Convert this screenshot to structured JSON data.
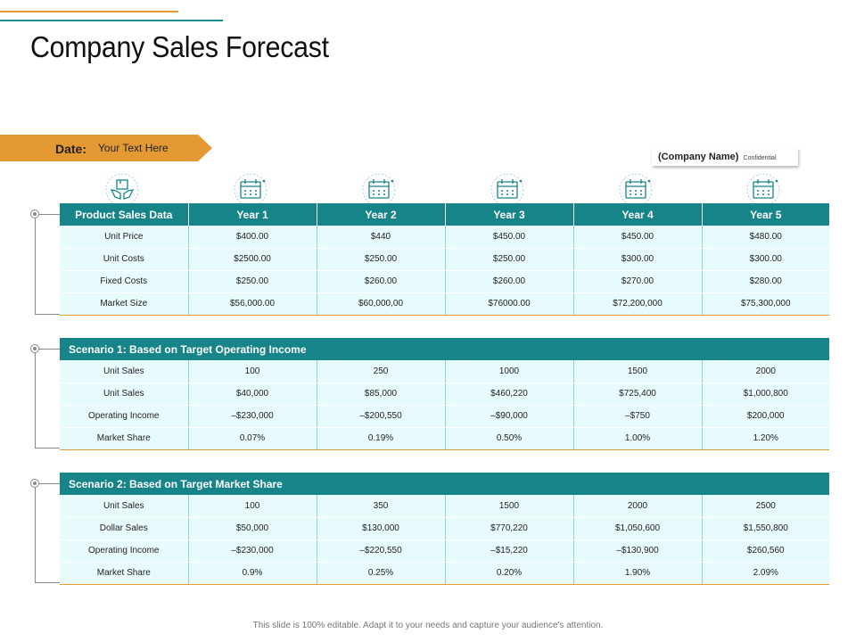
{
  "title": "Company Sales Forecast",
  "date": {
    "label": "Date:",
    "value": "Your Text Here"
  },
  "company": {
    "name": "(Company Name)",
    "note": "Confidential"
  },
  "colors": {
    "teal": "#168488",
    "orange": "#e39a35",
    "row_bg": "#e8fbfc"
  },
  "icons": [
    "hands-box-icon",
    "calendar-icon",
    "calendar-icon",
    "calendar-icon",
    "calendar-icon",
    "calendar-icon"
  ],
  "table1": {
    "header": [
      "Product Sales Data",
      "Year 1",
      "Year 2",
      "Year 3",
      "Year 4",
      "Year 5"
    ],
    "rows": [
      [
        "Unit Price",
        "$400.00",
        "$440",
        "$450.00",
        "$450.00",
        "$480.00"
      ],
      [
        "Unit Costs",
        "$2500.00",
        "$250.00",
        "$250.00",
        "$300.00",
        "$300.00"
      ],
      [
        "Fixed Costs",
        "$250.00",
        "$260.00",
        "$260.00",
        "$270.00",
        "$280.00"
      ],
      [
        "Market Size",
        "$56,000.00",
        "$60,000,00",
        "$76000.00",
        "$72,200,000",
        "$75,300,000"
      ]
    ]
  },
  "table2": {
    "title": "Scenario 1: Based on Target Operating Income",
    "rows": [
      [
        "Unit Sales",
        "100",
        "250",
        "1000",
        "1500",
        "2000"
      ],
      [
        "Unit Sales",
        "$40,000",
        "$85,000",
        "$460,220",
        "$725,400",
        "$1,000,800"
      ],
      [
        "Operating Income",
        "–$230,000",
        "–$200,550",
        "–$90,000",
        "–$750",
        "$200,000"
      ],
      [
        "Market Share",
        "0.07%",
        "0.19%",
        "0.50%",
        "1.00%",
        "1.20%"
      ]
    ]
  },
  "table3": {
    "title": "Scenario 2: Based on Target Market Share",
    "rows": [
      [
        "Unit Sales",
        "100",
        "350",
        "1500",
        "2000",
        "2500"
      ],
      [
        "Dollar Sales",
        "$50,000",
        "$130,000",
        "$770,220",
        "$1,050,600",
        "$1,550,800"
      ],
      [
        "Operating Income",
        "–$230,000",
        "–$220,550",
        "–$15,220",
        "–$130,900",
        "$260,560"
      ],
      [
        "Market Share",
        "0.9%",
        "0.25%",
        "0.20%",
        "1.90%",
        "2.09%"
      ]
    ]
  },
  "footer": "This slide is 100% editable. Adapt it to your needs and capture your audience's attention."
}
